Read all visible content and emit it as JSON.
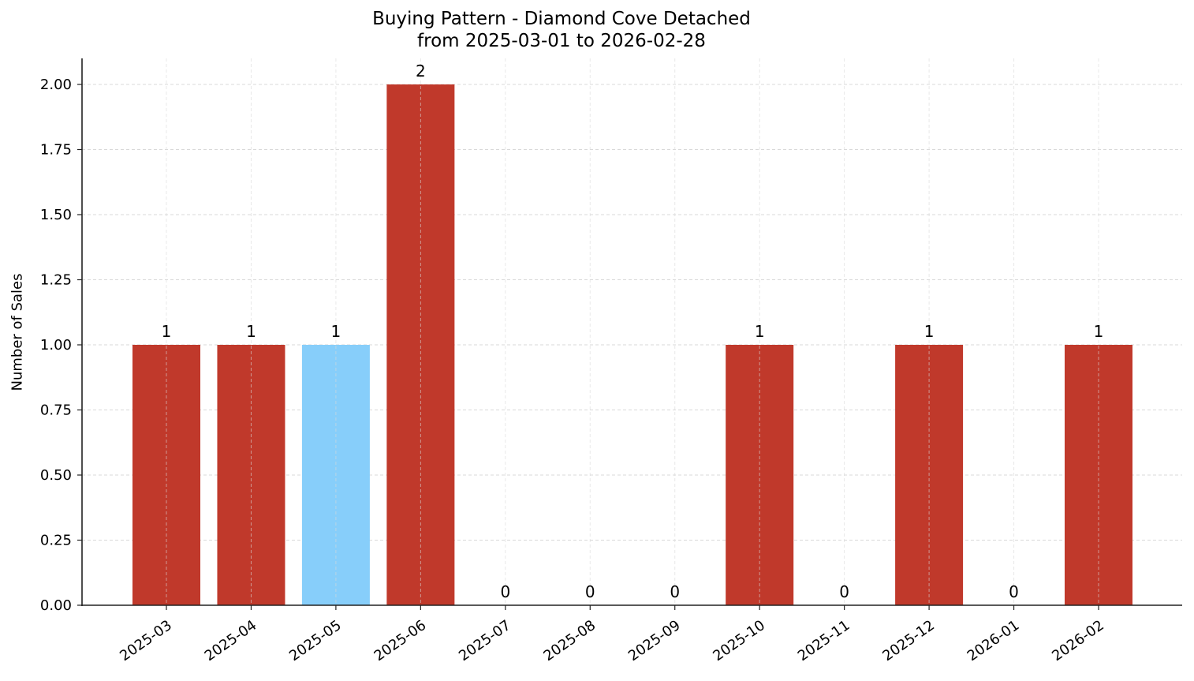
{
  "title_line1": "Buying Pattern - Diamond Cove Detached",
  "title_line2": "from 2025-03-01 to 2026-02-28",
  "colors": {
    "bar_default": "#c0392b",
    "bar_highlight": "#87cefa",
    "grid": "#d9d9d9",
    "axis": "#222222"
  },
  "chart_data": {
    "type": "bar",
    "title": "Buying Pattern - Diamond Cove Detached\nfrom 2025-03-01 to 2026-02-28",
    "xlabel": "",
    "ylabel": "Number of Sales",
    "categories": [
      "2025-03",
      "2025-04",
      "2025-05",
      "2025-06",
      "2025-07",
      "2025-08",
      "2025-09",
      "2025-10",
      "2025-11",
      "2025-12",
      "2026-01",
      "2026-02"
    ],
    "values": [
      1,
      1,
      1,
      2,
      0,
      0,
      0,
      1,
      0,
      1,
      0,
      1
    ],
    "highlighted_category": "2025-05",
    "bar_colors": [
      "#c0392b",
      "#c0392b",
      "#87cefa",
      "#c0392b",
      "#c0392b",
      "#c0392b",
      "#c0392b",
      "#c0392b",
      "#c0392b",
      "#c0392b",
      "#c0392b",
      "#c0392b"
    ],
    "data_labels": [
      "1",
      "1",
      "1",
      "2",
      "0",
      "0",
      "0",
      "1",
      "0",
      "1",
      "0",
      "1"
    ],
    "ylim": [
      0,
      2.1
    ],
    "yticks": [
      "0.00",
      "0.25",
      "0.50",
      "0.75",
      "1.00",
      "1.25",
      "1.50",
      "1.75",
      "2.00"
    ],
    "grid": true,
    "legend": null
  }
}
